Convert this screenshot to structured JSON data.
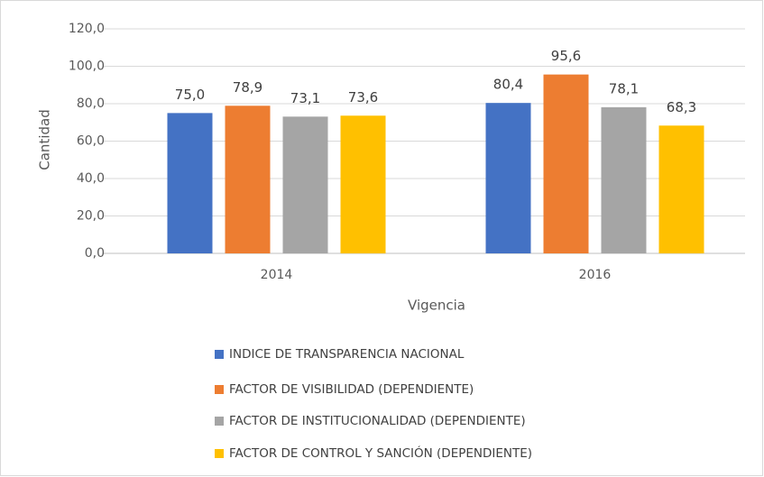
{
  "chart_data": {
    "type": "bar",
    "y_label": "Cantidad",
    "x_label": "Vigencia",
    "categories": [
      "2014",
      "2016"
    ],
    "series": [
      {
        "name": "INDICE DE TRANSPARENCIA NACIONAL",
        "color": "#4472c4",
        "values": [
          75.0,
          80.4
        ],
        "value_labels": [
          "75,0",
          "80,4"
        ]
      },
      {
        "name": "FACTOR DE VISIBILIDAD (DEPENDIENTE)",
        "color": "#ed7d31",
        "values": [
          78.9,
          95.6
        ],
        "value_labels": [
          "78,9",
          "95,6"
        ]
      },
      {
        "name": "FACTOR DE INSTITUCIONALIDAD (DEPENDIENTE)",
        "color": "#a5a5a5",
        "values": [
          73.1,
          78.1
        ],
        "value_labels": [
          "73,1",
          "78,1"
        ]
      },
      {
        "name": "FACTOR DE CONTROL Y SANCIÓN (DEPENDIENTE)",
        "color": "#ffc000",
        "values": [
          73.6,
          68.3
        ],
        "value_labels": [
          "73,6",
          "68,3"
        ]
      }
    ],
    "ylim": [
      0,
      120
    ],
    "yticks": [
      {
        "value": 0,
        "label": "0,0"
      },
      {
        "value": 20,
        "label": "20,0"
      },
      {
        "value": 40,
        "label": "40,0"
      },
      {
        "value": 60,
        "label": "60,0"
      },
      {
        "value": 80,
        "label": "80,0"
      },
      {
        "value": 100,
        "label": "100,0"
      },
      {
        "value": 120,
        "label": "120,0"
      }
    ],
    "grid": true,
    "legend": "bottom"
  }
}
